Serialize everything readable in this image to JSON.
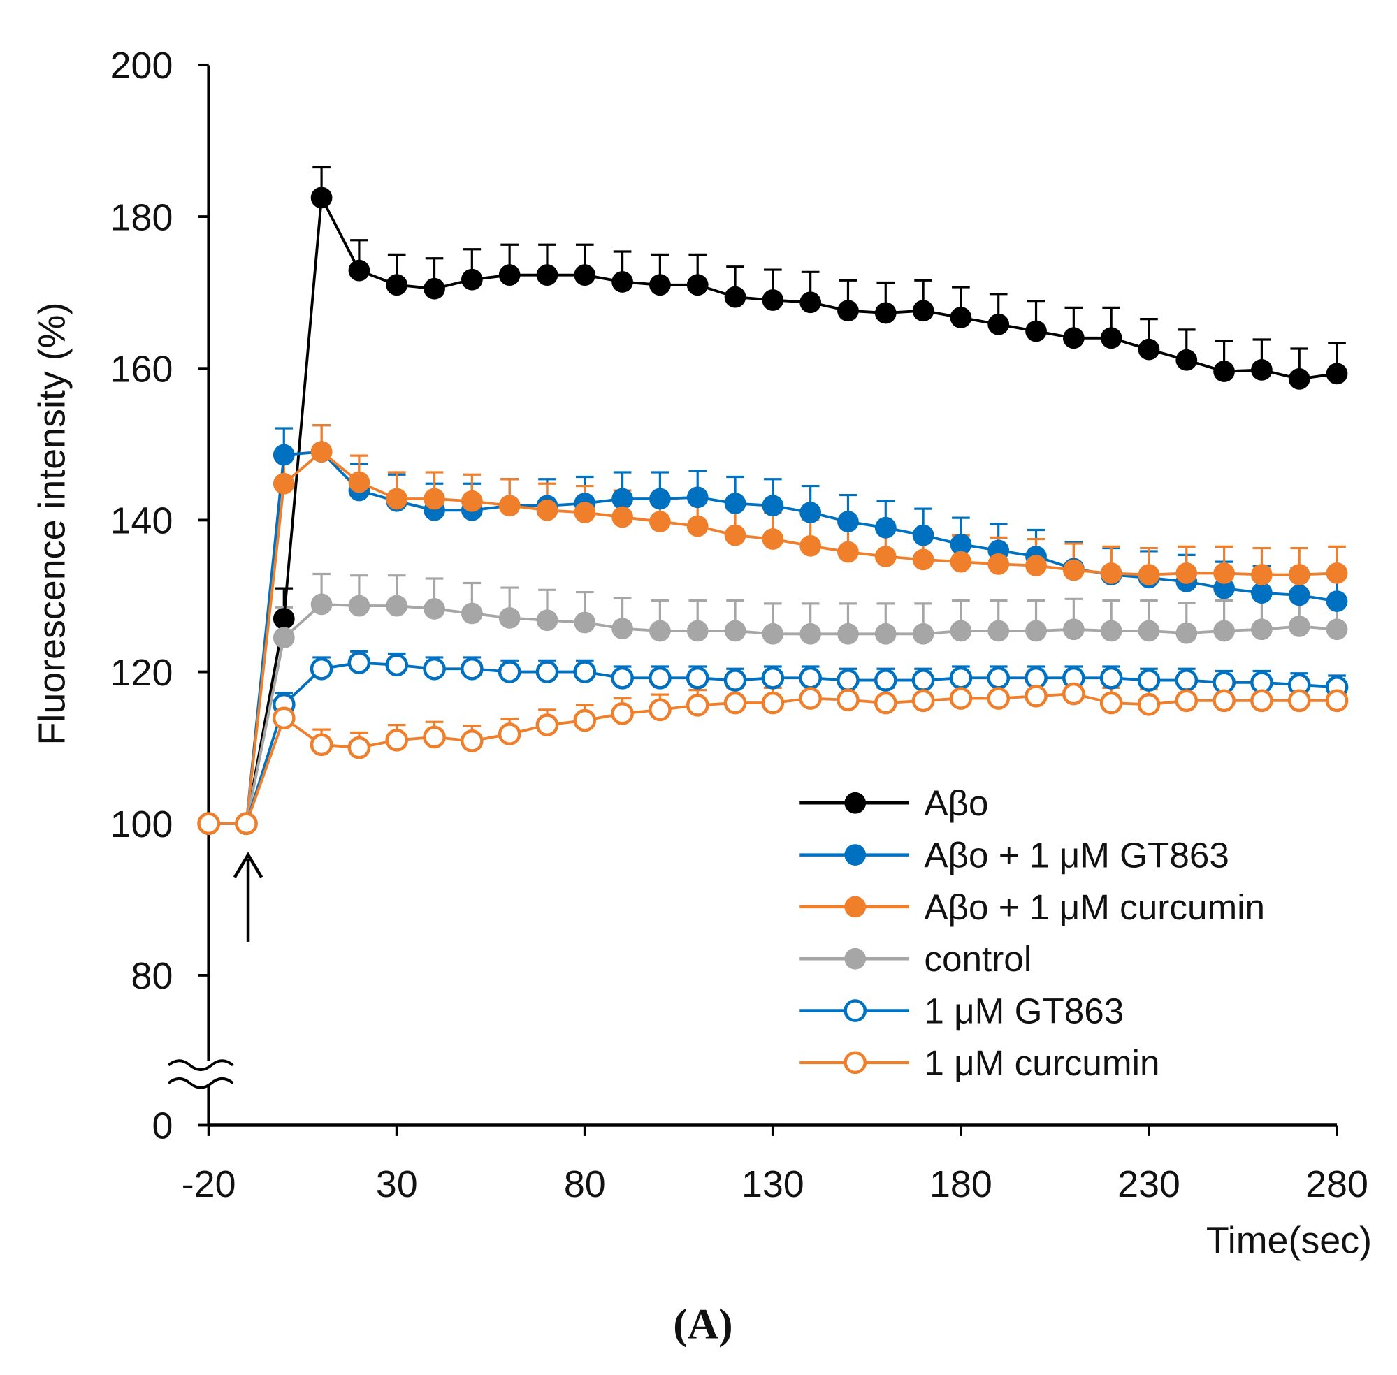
{
  "chart_data": {
    "type": "line",
    "title": "",
    "xlabel": "Time(sec)",
    "ylabel": "Fluorescence intensity (%)",
    "panel_label": "(A)",
    "xlim": [
      -20,
      280
    ],
    "ylim": [
      0,
      200
    ],
    "y_axis_break": [
      0,
      70
    ],
    "xticks": [
      "-20",
      "30",
      "80",
      "130",
      "180",
      "230",
      "280"
    ],
    "yticks": [
      "0",
      "80",
      "100",
      "120",
      "140",
      "160",
      "180",
      "200"
    ],
    "legend_position": "bottom-right",
    "annotation": "arrow at -10 sec",
    "x": [
      -20,
      -10,
      0,
      10,
      20,
      30,
      40,
      50,
      60,
      70,
      80,
      90,
      100,
      110,
      120,
      130,
      140,
      150,
      160,
      170,
      180,
      190,
      200,
      210,
      220,
      230,
      240,
      250,
      260,
      270,
      280
    ],
    "series": [
      {
        "name": "Aβo",
        "color": "#000000",
        "filled": true,
        "err": 4,
        "values": [
          100,
          100,
          127,
          182.5,
          172.9,
          171,
          170.5,
          171.7,
          172.3,
          172.3,
          172.3,
          171.4,
          171,
          171,
          169.4,
          169,
          168.7,
          167.6,
          167.3,
          167.6,
          166.7,
          165.8,
          164.9,
          164,
          164,
          162.5,
          161.1,
          159.6,
          159.8,
          158.6,
          159.3
        ]
      },
      {
        "name": "Aβo + 1 μM GT863",
        "color": "#0070C0",
        "filled": true,
        "err": 3.5,
        "values": [
          100,
          100,
          148.6,
          149,
          143.9,
          142.5,
          141.3,
          141.3,
          141.9,
          141.9,
          142.2,
          142.8,
          142.8,
          143,
          142.2,
          141.9,
          141,
          139.8,
          139,
          138,
          136.8,
          136,
          135.2,
          133.6,
          132.8,
          132.4,
          131.9,
          131,
          130.4,
          130.1,
          129.3
        ]
      },
      {
        "name": "Aβo + 1 μM curcumin",
        "color": "#F07F2C",
        "filled": true,
        "err": 3.5,
        "values": [
          100,
          100,
          144.8,
          149,
          145,
          142.8,
          142.8,
          142.5,
          141.9,
          141.3,
          141,
          140.4,
          139.8,
          139.2,
          138,
          137.5,
          136.6,
          135.8,
          135.2,
          134.8,
          134.5,
          134.2,
          134,
          133.4,
          133,
          132.8,
          133,
          133,
          132.8,
          132.8,
          133
        ]
      },
      {
        "name": "control",
        "color": "#A6A6A6",
        "filled": true,
        "err": 4,
        "values": [
          100,
          100,
          124.5,
          128.9,
          128.7,
          128.7,
          128.3,
          127.7,
          127.1,
          126.8,
          126.5,
          125.7,
          125.4,
          125.4,
          125.4,
          125,
          125,
          125,
          125,
          125,
          125.4,
          125.4,
          125.4,
          125.6,
          125.4,
          125.4,
          125.1,
          125.4,
          125.6,
          126,
          125.6
        ]
      },
      {
        "name": "1 μM GT863",
        "color": "#0070C0",
        "filled": false,
        "err": 1.5,
        "values": [
          100,
          100,
          115.7,
          120.4,
          121.2,
          120.9,
          120.4,
          120.4,
          120,
          120,
          120,
          119.2,
          119.2,
          119.2,
          118.9,
          119.2,
          119.2,
          118.9,
          118.9,
          118.9,
          119.2,
          119.2,
          119.2,
          119.2,
          119.2,
          118.9,
          118.9,
          118.6,
          118.6,
          118.3,
          118
        ]
      },
      {
        "name": "1 μM curcumin",
        "color": "#F07F2C",
        "filled": false,
        "err": 2,
        "values": [
          100,
          100,
          113.9,
          110.4,
          110,
          111,
          111.4,
          110.9,
          111.8,
          113,
          113.6,
          114.5,
          115,
          115.6,
          115.9,
          115.9,
          116.5,
          116.3,
          115.9,
          116.2,
          116.5,
          116.5,
          116.8,
          117.1,
          115.9,
          115.7,
          116.2,
          116.2,
          116.2,
          116.2,
          116.2
        ]
      }
    ]
  }
}
